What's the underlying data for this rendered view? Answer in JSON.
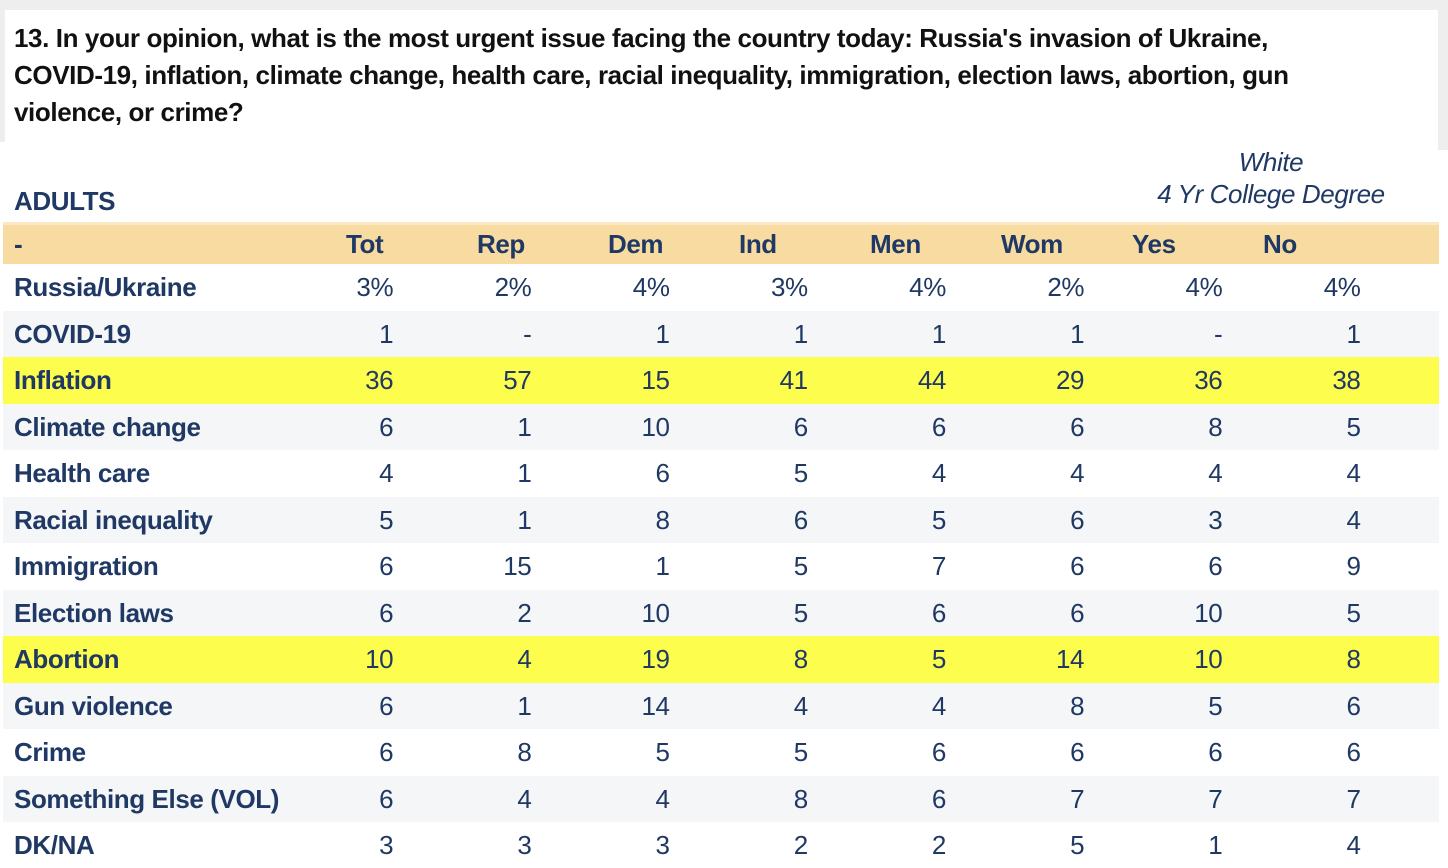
{
  "question": {
    "lines": [
      "13. In your opinion, what is the most urgent issue facing the country today: Russia's invasion of Ukraine,",
      "COVID-19, inflation, climate change, health care, racial inequality, immigration, election laws, abortion, gun",
      "violence, or crime?"
    ]
  },
  "table": {
    "population_label": "ADULTS",
    "subgroup_note": {
      "line1": "White",
      "line2": "4 Yr College Degree"
    },
    "row_header_placeholder": "-",
    "columns": [
      "Tot",
      "Rep",
      "Dem",
      "Ind",
      "Men",
      "Wom",
      "Yes",
      "No"
    ],
    "rows": [
      {
        "label": "Russia/Ukraine",
        "values": [
          "3%",
          "2%",
          "4%",
          "3%",
          "4%",
          "2%",
          "4%",
          "4%"
        ],
        "highlight": false
      },
      {
        "label": "COVID-19",
        "values": [
          "1",
          "-",
          "1",
          "1",
          "1",
          "1",
          "-",
          "1"
        ],
        "highlight": false
      },
      {
        "label": "Inflation",
        "values": [
          "36",
          "57",
          "15",
          "41",
          "44",
          "29",
          "36",
          "38"
        ],
        "highlight": true
      },
      {
        "label": "Climate change",
        "values": [
          "6",
          "1",
          "10",
          "6",
          "6",
          "6",
          "8",
          "5"
        ],
        "highlight": false
      },
      {
        "label": "Health care",
        "values": [
          "4",
          "1",
          "6",
          "5",
          "4",
          "4",
          "4",
          "4"
        ],
        "highlight": false
      },
      {
        "label": "Racial inequality",
        "values": [
          "5",
          "1",
          "8",
          "6",
          "5",
          "6",
          "3",
          "4"
        ],
        "highlight": false
      },
      {
        "label": "Immigration",
        "values": [
          "6",
          "15",
          "1",
          "5",
          "7",
          "6",
          "6",
          "9"
        ],
        "highlight": false
      },
      {
        "label": "Election laws",
        "values": [
          "6",
          "2",
          "10",
          "5",
          "6",
          "6",
          "10",
          "5"
        ],
        "highlight": false
      },
      {
        "label": "Abortion",
        "values": [
          "10",
          "4",
          "19",
          "8",
          "5",
          "14",
          "10",
          "8"
        ],
        "highlight": true
      },
      {
        "label": "Gun violence",
        "values": [
          "6",
          "1",
          "14",
          "4",
          "4",
          "8",
          "5",
          "6"
        ],
        "highlight": false
      },
      {
        "label": "Crime",
        "values": [
          "6",
          "8",
          "5",
          "5",
          "6",
          "6",
          "6",
          "6"
        ],
        "highlight": false
      },
      {
        "label": "Something Else (VOL)",
        "values": [
          "6",
          "4",
          "4",
          "8",
          "6",
          "7",
          "7",
          "7"
        ],
        "highlight": false
      },
      {
        "label": "DK/NA",
        "values": [
          "3",
          "3",
          "3",
          "2",
          "2",
          "5",
          "1",
          "4"
        ],
        "highlight": false
      }
    ]
  },
  "colors": {
    "header_band": "#f8dba1",
    "highlight_row": "#fdfd4e",
    "alt_row": "#f4f6f8",
    "text_navy": "#1f3864",
    "question_text": "#111111"
  }
}
